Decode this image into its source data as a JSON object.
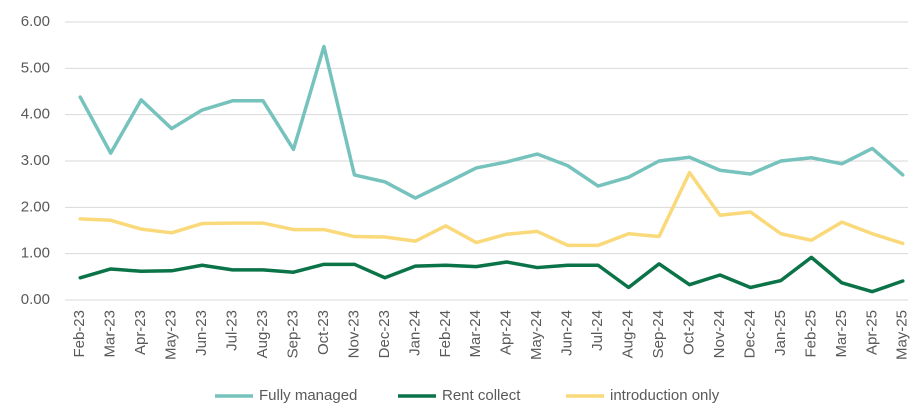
{
  "chart_data": {
    "type": "line",
    "categories": [
      "Feb-23",
      "Mar-23",
      "Apr-23",
      "May-23",
      "Jun-23",
      "Jul-23",
      "Aug-23",
      "Sep-23",
      "Oct-23",
      "Nov-23",
      "Dec-23",
      "Jan-24",
      "Feb-24",
      "Mar-24",
      "Apr-24",
      "May-24",
      "Jun-24",
      "Jul-24",
      "Aug-24",
      "Sep-24",
      "Oct-24",
      "Nov-24",
      "Dec-24",
      "Jan-25",
      "Feb-25",
      "Mar-25",
      "Apr-25",
      "May-25"
    ],
    "series": [
      {
        "name": "Fully managed",
        "color": "#76c2bd",
        "values": [
          4.38,
          3.17,
          4.32,
          3.7,
          4.1,
          4.3,
          4.3,
          3.25,
          5.47,
          2.7,
          2.55,
          2.2,
          2.52,
          2.85,
          2.98,
          3.15,
          2.9,
          2.46,
          2.65,
          3.0,
          3.08,
          2.8,
          2.72,
          3.0,
          3.07,
          2.94,
          3.27,
          2.7
        ]
      },
      {
        "name": "Rent collect",
        "color": "#0b7348",
        "values": [
          0.48,
          0.67,
          0.62,
          0.63,
          0.75,
          0.65,
          0.65,
          0.6,
          0.77,
          0.77,
          0.48,
          0.73,
          0.75,
          0.72,
          0.82,
          0.7,
          0.75,
          0.75,
          0.27,
          0.78,
          0.33,
          0.54,
          0.27,
          0.42,
          0.92,
          0.37,
          0.18,
          0.41
        ]
      },
      {
        "name": "introduction only",
        "color": "#fad97a",
        "values": [
          1.75,
          1.72,
          1.53,
          1.45,
          1.65,
          1.66,
          1.66,
          1.52,
          1.52,
          1.37,
          1.36,
          1.27,
          1.6,
          1.24,
          1.42,
          1.48,
          1.18,
          1.18,
          1.43,
          1.37,
          2.75,
          1.83,
          1.9,
          1.43,
          1.29,
          1.68,
          1.43,
          1.22
        ]
      }
    ],
    "ylim": [
      0,
      6
    ],
    "yticks": [
      {
        "value": 0,
        "label": "0.00"
      },
      {
        "value": 1,
        "label": "1.00"
      },
      {
        "value": 2,
        "label": "2.00"
      },
      {
        "value": 3,
        "label": "3.00"
      },
      {
        "value": 4,
        "label": "4.00"
      },
      {
        "value": 5,
        "label": "5.00"
      },
      {
        "value": 6,
        "label": "6.00"
      }
    ],
    "grid": true,
    "legend": "bottom"
  }
}
